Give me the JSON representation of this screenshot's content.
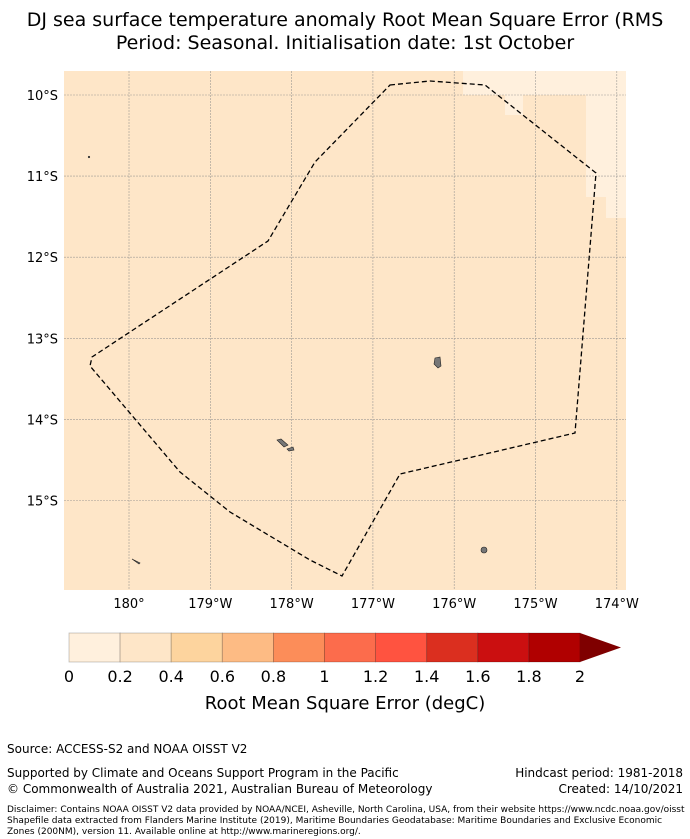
{
  "chart_data": {
    "type": "heatmap",
    "title_line1": "DJ sea surface temperature anomaly Root Mean Square Error (RMS",
    "title_line2": "Period: Seasonal. Initialisation date: 1st October",
    "x_ticks": [
      "180°",
      "179°W",
      "178°W",
      "177°W",
      "176°W",
      "175°W",
      "174°W"
    ],
    "y_ticks": [
      "10°S",
      "11°S",
      "12°S",
      "13°S",
      "14°S",
      "15°S"
    ],
    "xlim_deg_east": [
      179.2,
      186.1
    ],
    "ylim_deg": [
      -16.1,
      -9.7
    ],
    "grid": true,
    "field_summary": {
      "main_value_bin": "0.2-0.4",
      "northeast_corner_bin": "0-0.2"
    },
    "colorbar": {
      "label": "Root Mean Square Error (degC)",
      "ticks": [
        "0",
        "0.2",
        "0.4",
        "0.6",
        "0.8",
        "1",
        "1.2",
        "1.4",
        "1.6",
        "1.8",
        "2"
      ],
      "colors": [
        "#fff0dd",
        "#fee6c8",
        "#fdd49e",
        "#fdbb84",
        "#fc8d59",
        "#fc6c4c",
        "#ff5340",
        "#db2f1f",
        "#cb0f10",
        "#b00000"
      ],
      "extend_color": "#7f0000"
    }
  },
  "footer": {
    "source": "Source: ACCESS-S2 and NOAA OISST V2",
    "supported": "Supported by Climate and Oceans Support Program in the Pacific",
    "copyright": "© Commonwealth of Australia 2021, Australian Bureau of Meteorology",
    "hindcast": "Hindcast period: 1981-2018",
    "created": "Created: 14/10/2021",
    "disclaimer1": "Disclaimer: Contains NOAA OISST V2 data provided by NOAA/NCEI, Asheville, North Carolina, USA, from their website https://www.ncdc.noaa.gov/oisst",
    "disclaimer2": "Shapefile data extracted from Flanders Marine Institute (2019), Maritime Boundaries Geodatabase: Maritime Boundaries and Exclusive Economic",
    "disclaimer3": "Zones (200NM), version 11. Available online at http://www.marineregions.org/."
  }
}
